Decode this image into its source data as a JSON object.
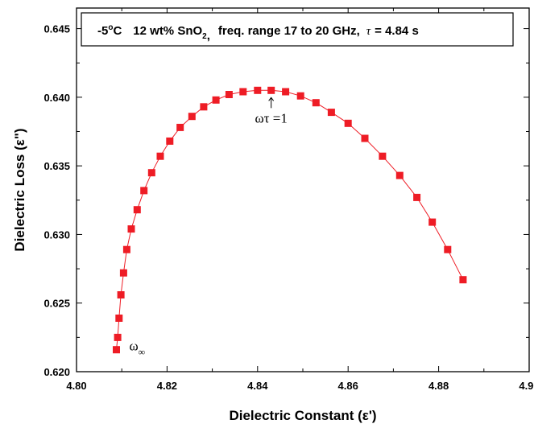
{
  "chart_data": {
    "type": "scatter",
    "title": "",
    "legend_box": {
      "temp_value": "-5",
      "temp_unit": "C",
      "temp_degree": "o",
      "composition": "12 wt% SnO",
      "composition_sub": "2",
      "composition_tail": ",",
      "freq": "freq. range 17 to 20 GHz,",
      "tau_symbol": "τ",
      "tau_value": "= 4.84 s"
    },
    "xlabel": "Dielectric Constant (ε')",
    "ylabel": "Dielectric Loss (ε\")",
    "xlim": [
      4.8,
      4.9
    ],
    "ylim": [
      0.62,
      0.6465
    ],
    "xticks": [
      "4.80",
      "4.82",
      "4.84",
      "4.86",
      "4.88",
      "4.90"
    ],
    "yticks": [
      "0.620",
      "0.625",
      "0.630",
      "0.635",
      "0.640",
      "0.645"
    ],
    "marker_color": "#ee1c25",
    "line_color": "#ee1c25",
    "x": [
      4.8088,
      4.8091,
      4.8094,
      4.8098,
      4.8104,
      4.8111,
      4.8121,
      4.8134,
      4.8149,
      4.8166,
      4.8185,
      4.8206,
      4.8229,
      4.8255,
      4.8281,
      4.8308,
      4.8337,
      4.8368,
      4.84,
      4.843,
      4.8462,
      4.8495,
      4.8529,
      4.8563,
      4.86,
      4.8637,
      4.8676,
      4.8714,
      4.8752,
      4.8786,
      4.882,
      4.8854
    ],
    "y": [
      0.6216,
      0.6225,
      0.6239,
      0.6256,
      0.6272,
      0.6289,
      0.6304,
      0.6318,
      0.6332,
      0.6345,
      0.6357,
      0.6368,
      0.6378,
      0.6386,
      0.6393,
      0.6398,
      0.6402,
      0.6404,
      0.6405,
      0.6405,
      0.6404,
      0.6401,
      0.6396,
      0.6389,
      0.6381,
      0.637,
      0.6357,
      0.6343,
      0.6327,
      0.6309,
      0.6289,
      0.6267
    ],
    "annotations": [
      {
        "text": "ωτ =1",
        "x": 4.843,
        "y": 0.6405,
        "kind": "arrow"
      },
      {
        "text_main": "ω",
        "text_sub": "∞",
        "x": 4.8088,
        "y": 0.6216,
        "kind": "label"
      }
    ]
  }
}
